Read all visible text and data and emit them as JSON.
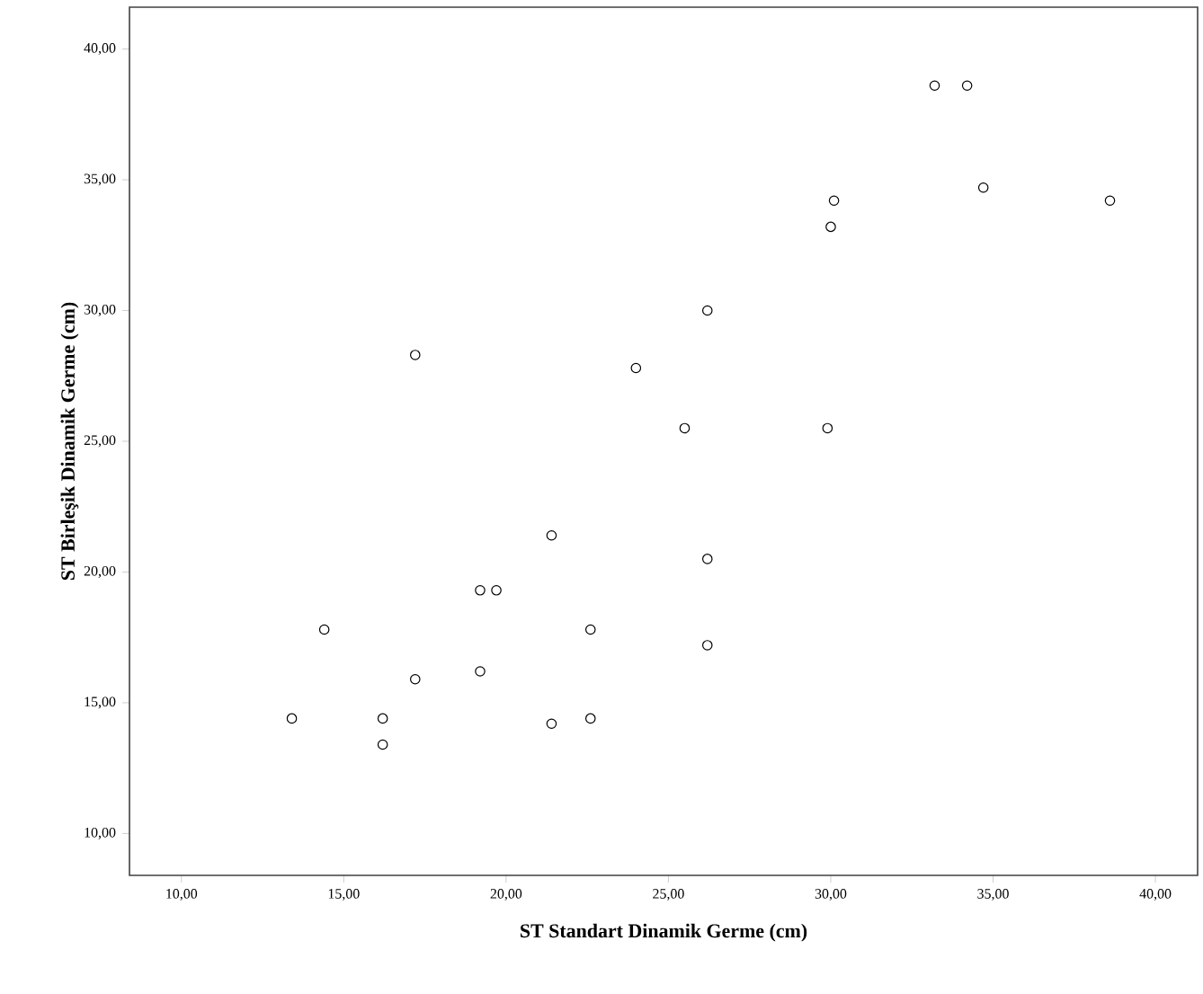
{
  "chart_data": {
    "type": "scatter",
    "xlabel": "ST Standart Dinamik Germe (cm)",
    "ylabel": "ST Birleşik Dinamik Germe (cm)",
    "x": [
      33.2,
      34.2,
      34.7,
      38.6,
      30.1,
      30.0,
      26.2,
      17.2,
      24.0,
      25.5,
      29.9,
      21.4,
      26.2,
      19.2,
      19.7,
      14.4,
      22.6,
      26.2,
      19.2,
      17.2,
      13.4,
      16.2,
      22.6,
      21.4,
      16.2
    ],
    "values": [
      38.6,
      38.6,
      34.7,
      34.2,
      34.2,
      33.2,
      30.0,
      28.3,
      27.8,
      25.5,
      25.5,
      21.4,
      20.5,
      19.3,
      19.3,
      17.8,
      17.8,
      17.2,
      16.2,
      15.9,
      14.4,
      14.4,
      14.4,
      14.2,
      13.4
    ],
    "color": "#000000",
    "marker": "circle",
    "grid": false,
    "xlim": [
      8.4,
      41.3
    ],
    "ylim": [
      8.4,
      41.6
    ],
    "xticks": [
      {
        "value": 10,
        "label": "10,00"
      },
      {
        "value": 15,
        "label": "15,00"
      },
      {
        "value": 20,
        "label": "20,00"
      },
      {
        "value": 25,
        "label": "25,00"
      },
      {
        "value": 30,
        "label": "30,00"
      },
      {
        "value": 35,
        "label": "35,00"
      },
      {
        "value": 40,
        "label": "40,00"
      }
    ],
    "yticks": [
      {
        "value": 10,
        "label": "10,00"
      },
      {
        "value": 15,
        "label": "15,00"
      },
      {
        "value": 20,
        "label": "20,00"
      },
      {
        "value": 25,
        "label": "25,00"
      },
      {
        "value": 30,
        "label": "30,00"
      },
      {
        "value": 35,
        "label": "35,00"
      },
      {
        "value": 40,
        "label": "40,00"
      }
    ]
  }
}
